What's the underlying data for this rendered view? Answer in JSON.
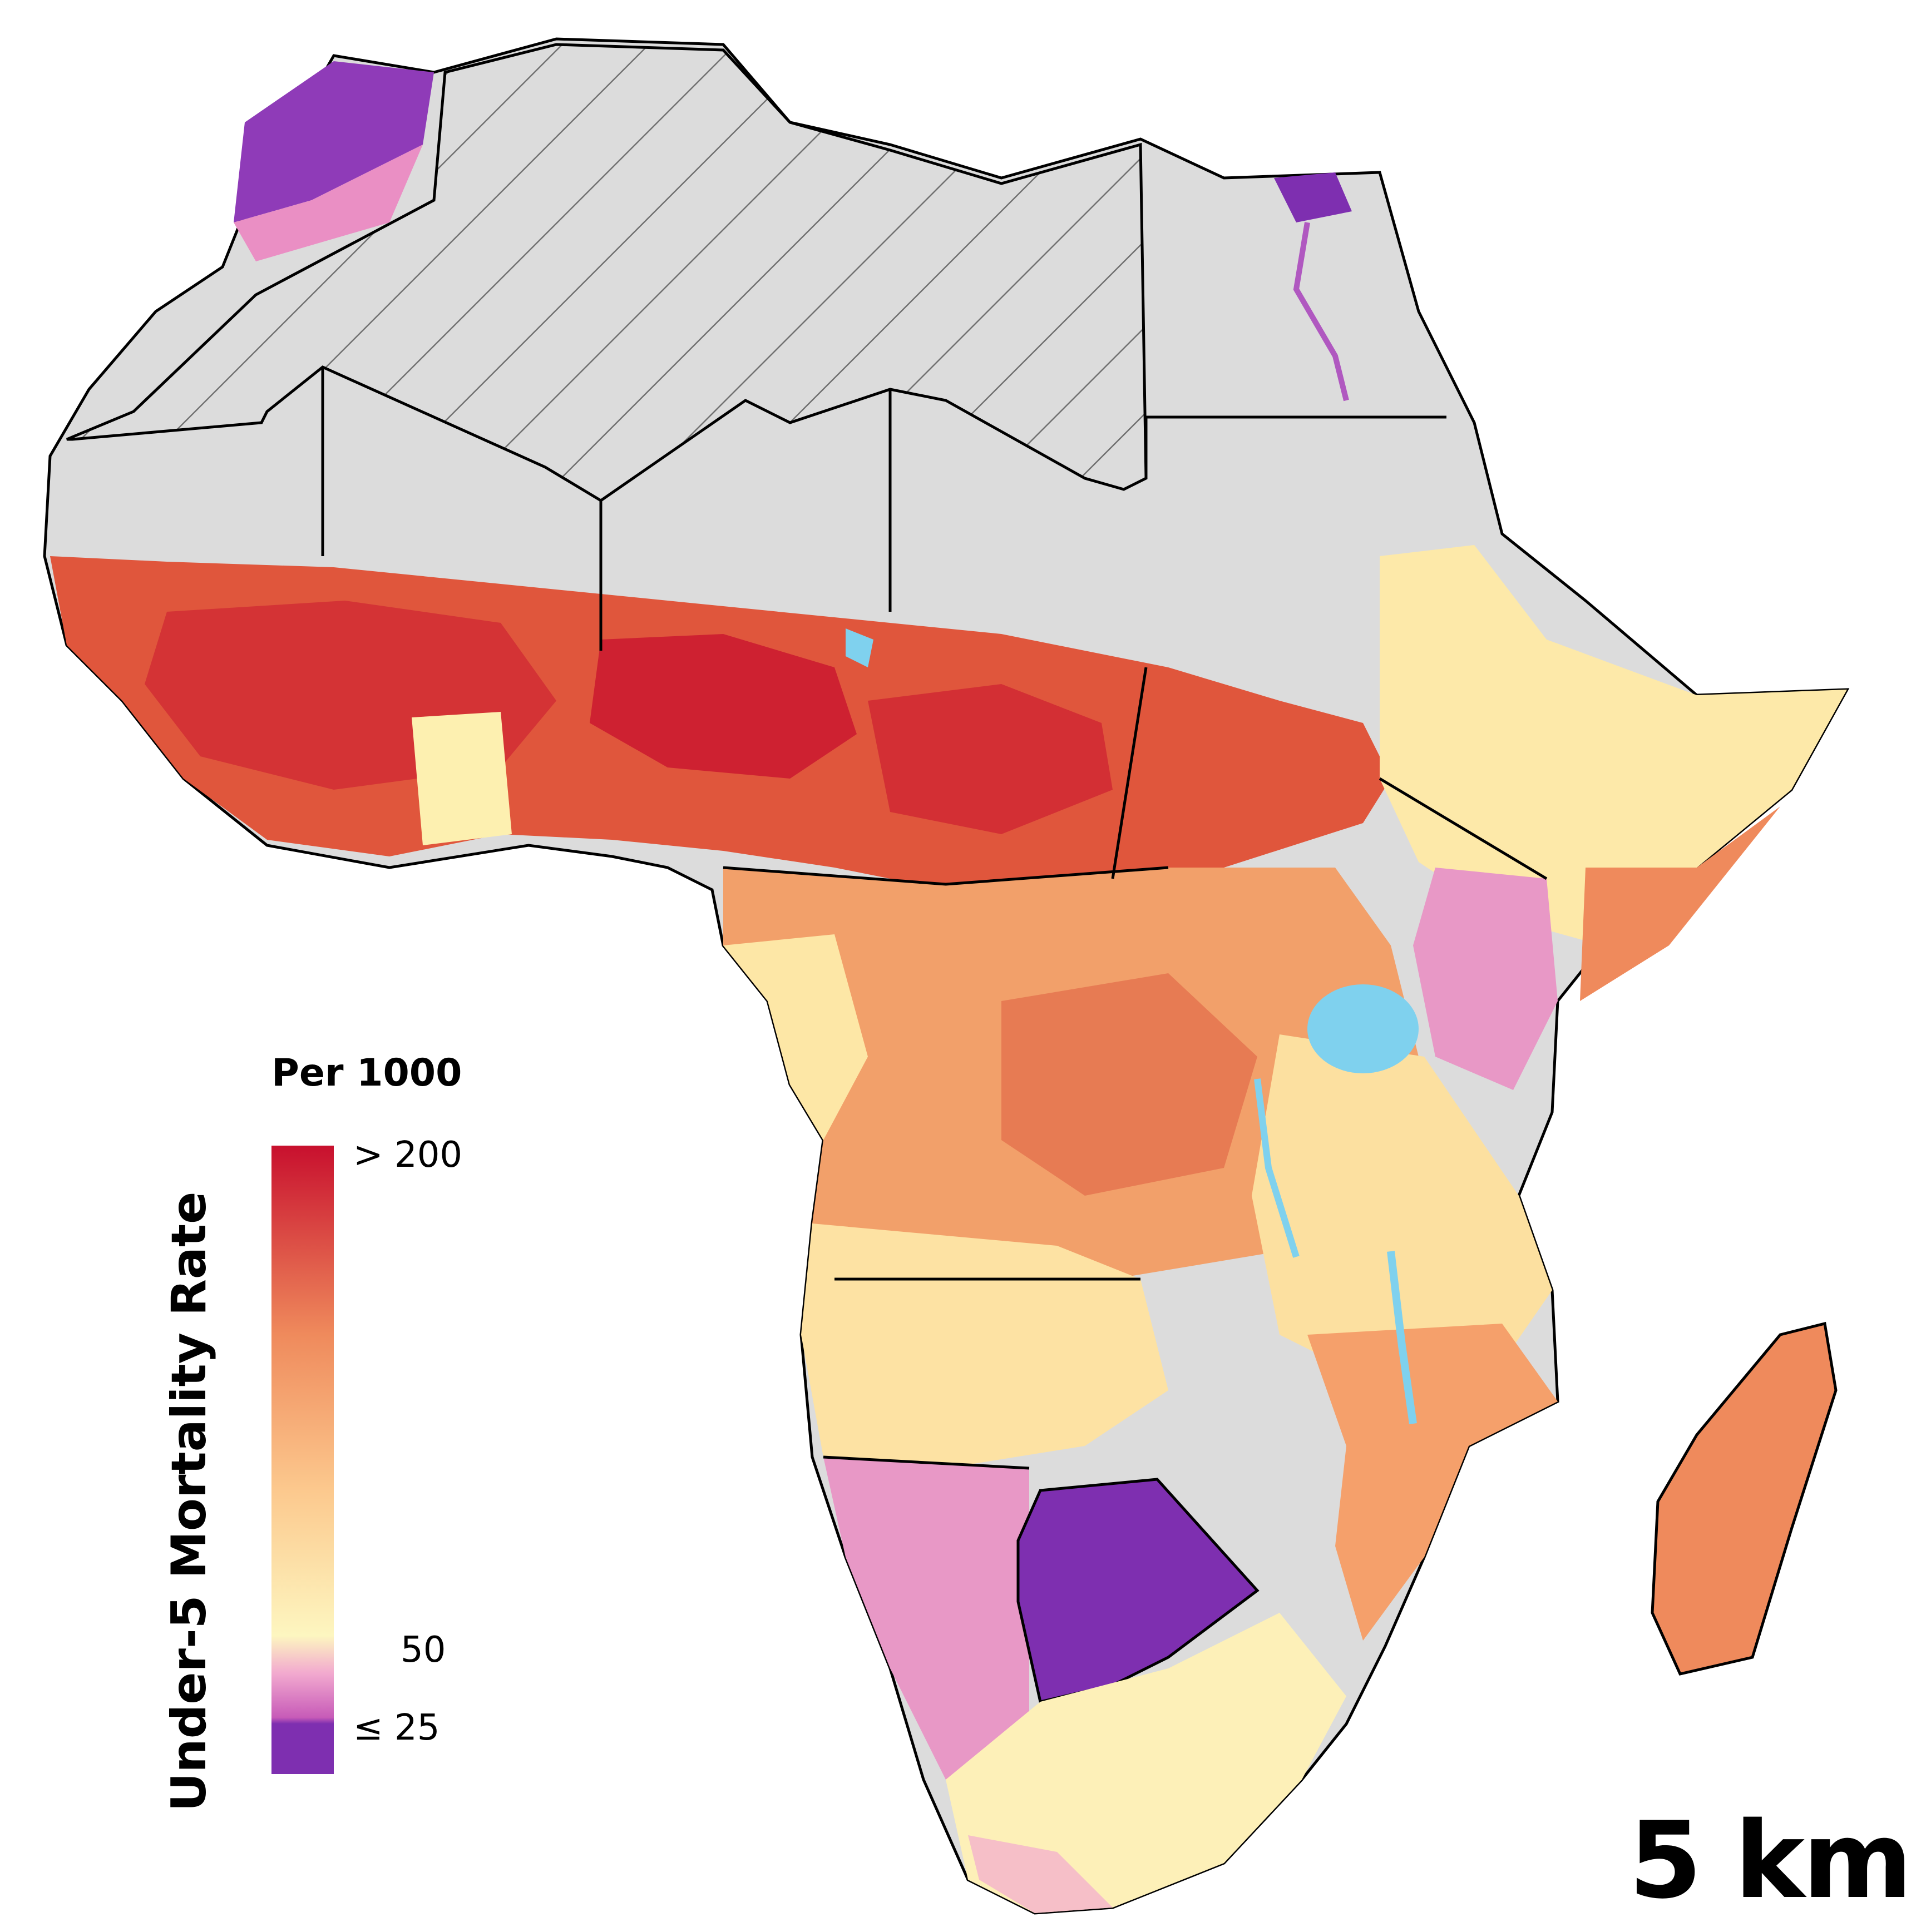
{
  "legend": {
    "title": "Per 1000",
    "label": "Under-5 Mortality Rate",
    "ticks": [
      {
        "text": "> 200",
        "value": 200
      },
      {
        "text": "50",
        "value": 50
      },
      {
        "text": "≤ 25",
        "value": 25
      }
    ],
    "colors": {
      "high": "#c8102e",
      "mid_high": "#ee7b55",
      "mid": "#fcd89a",
      "fifty": "#fdf6c0",
      "low": "#e98fc6",
      "min": "#7e2fb0"
    }
  },
  "scale_label": "5 km",
  "map": {
    "no_data_color": "#dcdcdc",
    "water_color": "#7fd1ee",
    "hatch_region": "Sahara (excluded)"
  }
}
